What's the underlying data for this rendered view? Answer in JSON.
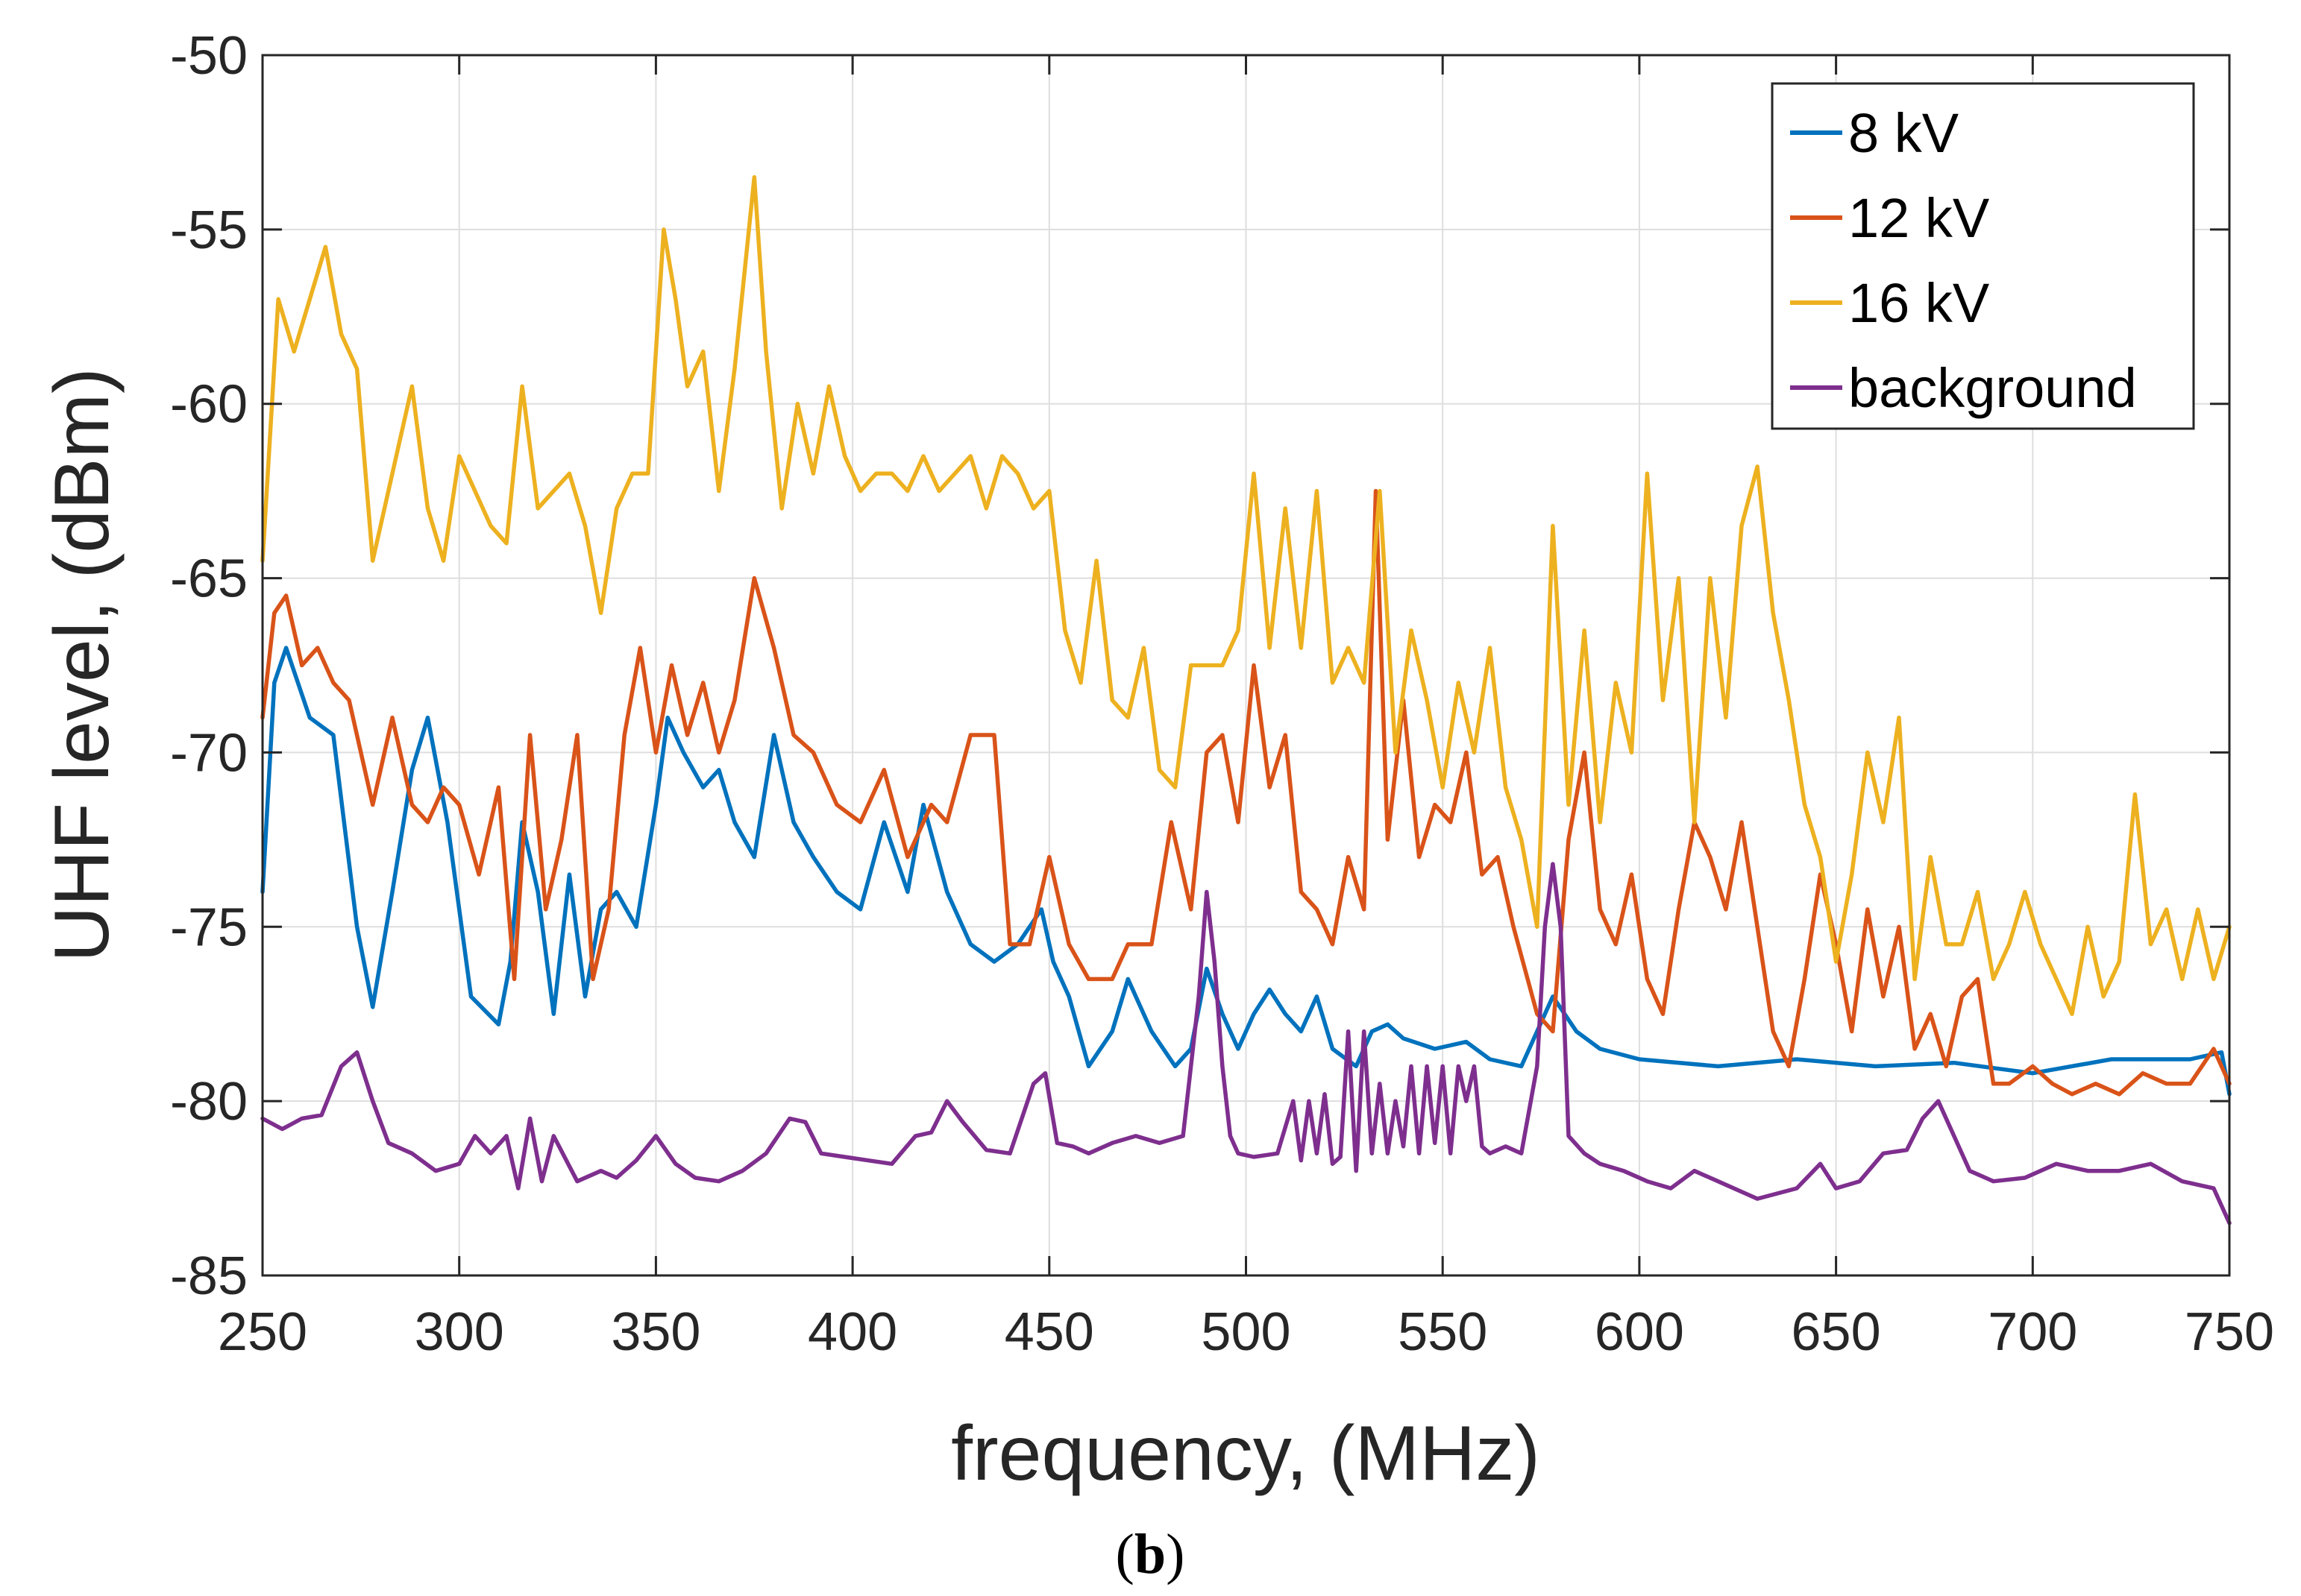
{
  "chart_data": {
    "type": "line",
    "title": "",
    "xlabel": "frequency, (MHz)",
    "ylabel": "UHF level, (dBm)",
    "xlim": [
      250,
      750
    ],
    "ylim": [
      -85,
      -50
    ],
    "xticks": [
      250,
      300,
      350,
      400,
      450,
      500,
      550,
      600,
      650,
      700,
      750
    ],
    "yticks": [
      -85,
      -80,
      -75,
      -70,
      -65,
      -60,
      -55,
      -50
    ],
    "grid": true,
    "legend_position": "top-right",
    "caption": {
      "open": "(",
      "bold": "b",
      "close": ")"
    },
    "series": [
      {
        "name": "8 kV",
        "color": "#0072BD",
        "x": [
          250,
          253,
          256,
          262,
          268,
          274,
          278,
          283,
          288,
          292,
          297,
          303,
          310,
          313,
          316,
          320,
          324,
          328,
          332,
          336,
          340,
          345,
          350,
          353,
          357,
          362,
          366,
          370,
          375,
          380,
          385,
          390,
          396,
          402,
          408,
          414,
          418,
          424,
          430,
          436,
          442,
          448,
          451,
          455,
          460,
          466,
          470,
          476,
          482,
          486,
          490,
          494,
          498,
          502,
          506,
          510,
          514,
          518,
          522,
          528,
          532,
          536,
          540,
          548,
          556,
          562,
          570,
          574,
          578,
          584,
          590,
          600,
          620,
          640,
          660,
          680,
          700,
          720,
          740,
          748,
          750
        ],
        "y": [
          -74,
          -68,
          -67,
          -69,
          -69.5,
          -75,
          -77.3,
          -74,
          -70.5,
          -69,
          -72,
          -77,
          -77.8,
          -76,
          -72,
          -74,
          -77.5,
          -73.5,
          -77,
          -74.5,
          -74,
          -75,
          -71.5,
          -69,
          -70,
          -71,
          -70.5,
          -72,
          -73,
          -69.5,
          -72,
          -73,
          -74,
          -74.5,
          -72,
          -74,
          -71.5,
          -74,
          -75.5,
          -76,
          -75.5,
          -74.5,
          -76,
          -77,
          -79,
          -78,
          -76.5,
          -78,
          -79,
          -78.5,
          -76.2,
          -77.5,
          -78.5,
          -77.5,
          -76.8,
          -77.5,
          -78,
          -77,
          -78.5,
          -79,
          -78,
          -77.8,
          -78.2,
          -78.5,
          -78.3,
          -78.8,
          -79,
          -78,
          -77,
          -78,
          -78.5,
          -78.8,
          -79,
          -78.8,
          -79,
          -78.9,
          -79.2,
          -78.8,
          -78.8,
          -78.6,
          -79.8
        ]
      },
      {
        "name": "12 kV",
        "color": "#D95319",
        "x": [
          250,
          253,
          256,
          260,
          264,
          268,
          272,
          278,
          283,
          288,
          292,
          296,
          300,
          305,
          310,
          314,
          318,
          322,
          326,
          330,
          334,
          338,
          342,
          346,
          350,
          354,
          358,
          362,
          366,
          370,
          375,
          380,
          385,
          390,
          396,
          402,
          408,
          414,
          420,
          424,
          430,
          436,
          440,
          445,
          450,
          455,
          460,
          466,
          470,
          476,
          481,
          486,
          490,
          494,
          498,
          502,
          506,
          510,
          514,
          518,
          522,
          526,
          530,
          533,
          536,
          540,
          544,
          548,
          552,
          556,
          560,
          564,
          568,
          574,
          578,
          582,
          586,
          590,
          594,
          598,
          602,
          606,
          610,
          614,
          618,
          622,
          626,
          630,
          634,
          638,
          642,
          646,
          650,
          654,
          658,
          662,
          666,
          670,
          674,
          678,
          682,
          686,
          690,
          694,
          700,
          705,
          710,
          716,
          722,
          728,
          734,
          740,
          746,
          750
        ],
        "y": [
          -69,
          -66,
          -65.5,
          -67.5,
          -67,
          -68,
          -68.5,
          -71.5,
          -69,
          -71.5,
          -72,
          -71,
          -71.5,
          -73.5,
          -71,
          -76.5,
          -69.5,
          -74.5,
          -72.5,
          -69.5,
          -76.5,
          -74.5,
          -69.5,
          -67,
          -70,
          -67.5,
          -69.5,
          -68,
          -70,
          -68.5,
          -65,
          -67,
          -69.5,
          -70,
          -71.5,
          -72,
          -70.5,
          -73,
          -71.5,
          -72,
          -69.5,
          -69.5,
          -75.5,
          -75.5,
          -73,
          -75.5,
          -76.5,
          -76.5,
          -75.5,
          -75.5,
          -72,
          -74.5,
          -70,
          -69.5,
          -72,
          -67.5,
          -71,
          -69.5,
          -74,
          -74.5,
          -75.5,
          -73,
          -74.5,
          -62.5,
          -72.5,
          -68.5,
          -73,
          -71.5,
          -72,
          -70,
          -73.5,
          -73,
          -75,
          -77.5,
          -78,
          -72.5,
          -70,
          -74.5,
          -75.5,
          -73.5,
          -76.5,
          -77.5,
          -74.5,
          -72,
          -73,
          -74.5,
          -72,
          -75,
          -78,
          -79,
          -76.5,
          -73.5,
          -75.5,
          -78,
          -74.5,
          -77,
          -75,
          -78.5,
          -77.5,
          -79,
          -77,
          -76.5,
          -79.5,
          -79.5,
          -79,
          -79.5,
          -79.8,
          -79.5,
          -79.8,
          -79.2,
          -79.5,
          -79.5,
          -78.5,
          -79.5
        ]
      },
      {
        "name": "16 kV",
        "color": "#EDB120",
        "x": [
          250,
          254,
          258,
          262,
          266,
          270,
          274,
          278,
          283,
          288,
          292,
          296,
          300,
          304,
          308,
          312,
          316,
          320,
          324,
          328,
          332,
          336,
          340,
          344,
          348,
          352,
          355,
          358,
          362,
          366,
          370,
          375,
          378,
          382,
          386,
          390,
          394,
          398,
          402,
          406,
          410,
          414,
          418,
          422,
          426,
          430,
          434,
          438,
          442,
          446,
          450,
          454,
          458,
          462,
          466,
          470,
          474,
          478,
          482,
          486,
          490,
          494,
          498,
          502,
          506,
          510,
          514,
          518,
          522,
          526,
          530,
          534,
          538,
          542,
          546,
          550,
          554,
          558,
          562,
          566,
          570,
          574,
          578,
          582,
          586,
          590,
          594,
          598,
          602,
          606,
          610,
          614,
          618,
          622,
          626,
          630,
          634,
          638,
          642,
          646,
          650,
          654,
          658,
          662,
          666,
          670,
          674,
          678,
          682,
          686,
          690,
          694,
          698,
          702,
          706,
          710,
          714,
          718,
          722,
          726,
          730,
          734,
          738,
          742,
          746,
          750
        ],
        "y": [
          -64.5,
          -57,
          -58.5,
          -57,
          -55.5,
          -58,
          -59,
          -64.5,
          -62,
          -59.5,
          -63,
          -64.5,
          -61.5,
          -62.5,
          -63.5,
          -64,
          -59.5,
          -63,
          -62.5,
          -62,
          -63.5,
          -66,
          -63,
          -62,
          -62,
          -55,
          -57,
          -59.5,
          -58.5,
          -62.5,
          -59,
          -53.5,
          -58.5,
          -63,
          -60,
          -62,
          -59.5,
          -61.5,
          -62.5,
          -62,
          -62,
          -62.5,
          -61.5,
          -62.5,
          -62,
          -61.5,
          -63,
          -61.5,
          -62,
          -63,
          -62.5,
          -66.5,
          -68,
          -64.5,
          -68.5,
          -69,
          -67,
          -70.5,
          -71,
          -67.5,
          -67.5,
          -67.5,
          -66.5,
          -62,
          -67,
          -63,
          -67,
          -62.5,
          -68,
          -67,
          -68,
          -62.5,
          -70,
          -66.5,
          -68.5,
          -71,
          -68,
          -70,
          -67,
          -71,
          -72.5,
          -75,
          -63.5,
          -71.5,
          -66.5,
          -72,
          -68,
          -70,
          -62,
          -68.5,
          -65,
          -72,
          -65,
          -69,
          -63.5,
          -61.8,
          -66,
          -68.5,
          -71.5,
          -73,
          -76,
          -73.5,
          -70,
          -72,
          -69,
          -76.5,
          -73,
          -75.5,
          -75.5,
          -74,
          -76.5,
          -75.5,
          -74,
          -75.5,
          -76.5,
          -77.5,
          -75,
          -77,
          -76,
          -71.2,
          -75.5,
          -74.5,
          -76.5,
          -74.5,
          -76.5,
          -75
        ]
      },
      {
        "name": "background",
        "color": "#7E2F8E",
        "x": [
          250,
          255,
          260,
          265,
          270,
          274,
          278,
          282,
          288,
          294,
          300,
          304,
          308,
          312,
          315,
          318,
          321,
          324,
          330,
          336,
          340,
          345,
          350,
          355,
          360,
          366,
          372,
          378,
          384,
          388,
          392,
          398,
          404,
          410,
          416,
          420,
          424,
          428,
          434,
          440,
          446,
          449,
          452,
          456,
          460,
          466,
          472,
          478,
          484,
          486,
          488,
          490,
          492,
          494,
          496,
          498,
          502,
          508,
          512,
          514,
          516,
          518,
          520,
          522,
          524,
          526,
          528,
          530,
          532,
          534,
          536,
          538,
          540,
          542,
          544,
          546,
          548,
          550,
          552,
          554,
          556,
          558,
          560,
          562,
          566,
          570,
          574,
          576,
          578,
          580,
          582,
          586,
          590,
          596,
          602,
          608,
          614,
          620,
          630,
          640,
          646,
          650,
          656,
          662,
          668,
          672,
          676,
          680,
          684,
          690,
          698,
          706,
          714,
          722,
          730,
          738,
          746,
          750
        ],
        "y": [
          -80.5,
          -80.8,
          -80.5,
          -80.4,
          -79,
          -78.6,
          -80,
          -81.2,
          -81.5,
          -82,
          -81.8,
          -81,
          -81.5,
          -81,
          -82.5,
          -80.5,
          -82.3,
          -81,
          -82.3,
          -82,
          -82.2,
          -81.7,
          -81,
          -81.8,
          -82.2,
          -82.3,
          -82,
          -81.5,
          -80.5,
          -80.6,
          -81.5,
          -81.6,
          -81.7,
          -81.8,
          -81,
          -80.9,
          -80,
          -80.6,
          -81.4,
          -81.5,
          -79.5,
          -79.2,
          -81.2,
          -81.3,
          -81.5,
          -81.2,
          -81,
          -81.2,
          -81,
          -79,
          -77,
          -74,
          -76,
          -79,
          -81,
          -81.5,
          -81.6,
          -81.5,
          -80,
          -81.7,
          -80,
          -81.5,
          -79.8,
          -81.8,
          -81.6,
          -78,
          -82,
          -78,
          -81.5,
          -79.5,
          -81.5,
          -80,
          -81.3,
          -79,
          -81.5,
          -79,
          -81.2,
          -79,
          -81.5,
          -79,
          -80,
          -79,
          -81.3,
          -81.5,
          -81.3,
          -81.5,
          -79,
          -75,
          -73.2,
          -75,
          -81,
          -81.5,
          -81.8,
          -82,
          -82.3,
          -82.5,
          -82,
          -82.3,
          -82.8,
          -82.5,
          -81.8,
          -82.5,
          -82.3,
          -81.5,
          -81.4,
          -80.5,
          -80,
          -81,
          -82,
          -82.3,
          -82.2,
          -81.8,
          -82,
          -82,
          -81.8,
          -82.3,
          -82.5,
          -83.5
        ]
      }
    ]
  }
}
